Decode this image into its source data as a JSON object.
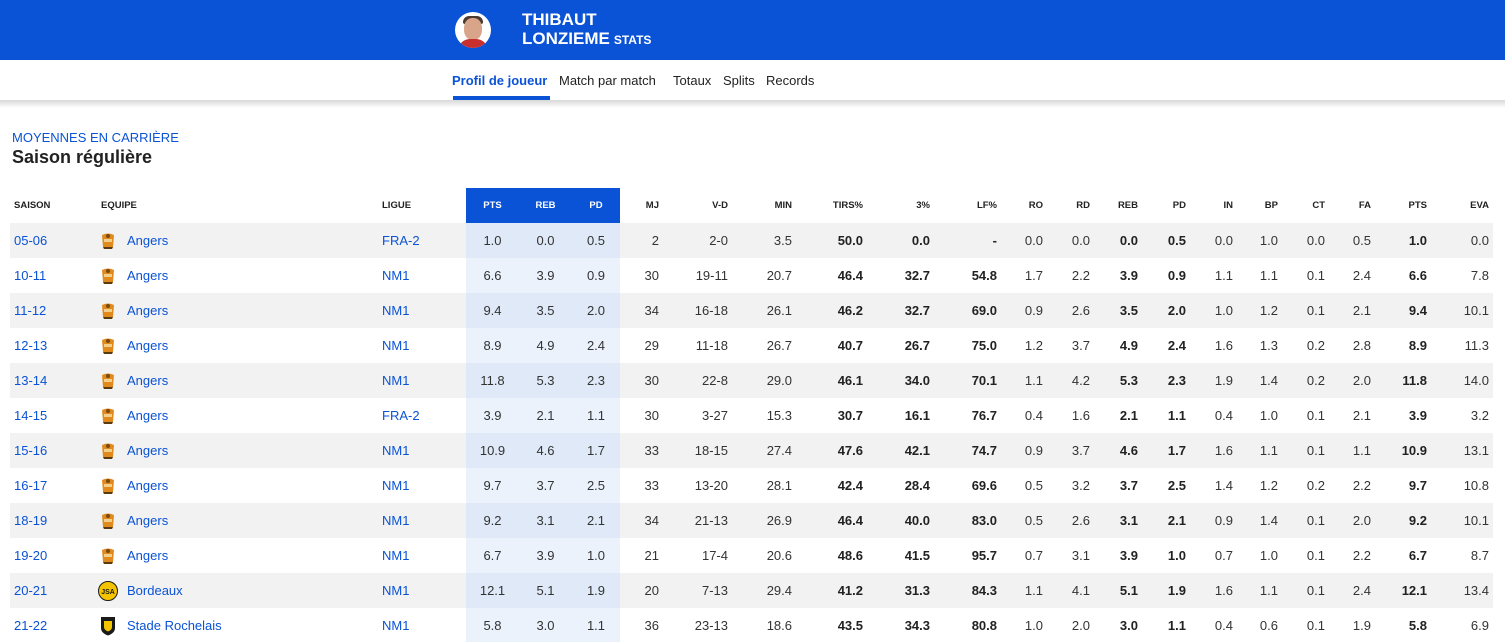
{
  "header": {
    "first_name": "THIBAUT",
    "last_name": "LONZIEME",
    "stats_label": "STATS",
    "avatar_icon": "player-photo"
  },
  "tabs": [
    {
      "label": "Profil de joueur",
      "active": true
    },
    {
      "label": "Match par match",
      "active": false
    },
    {
      "label": "Totaux",
      "active": false
    },
    {
      "label": "Splits",
      "active": false
    },
    {
      "label": "Records",
      "active": false
    }
  ],
  "section": {
    "kicker": "MOYENNES EN CARRIÈRE",
    "title": "Saison régulière"
  },
  "colors": {
    "brand_blue": "#0a52d6",
    "highlight_col_bg": "#ebf2fc"
  },
  "table": {
    "headers": [
      "SAISON",
      "EQUIPE",
      "LIGUE",
      "PTS",
      "REB",
      "PD",
      "MJ",
      "V-D",
      "MIN",
      "TIRS%",
      "3%",
      "LF%",
      "RO",
      "RD",
      "REB",
      "PD",
      "IN",
      "BP",
      "CT",
      "FA",
      "PTS",
      "EVA"
    ],
    "rows": [
      {
        "saison": "05-06",
        "team": "Angers",
        "logo": "angers-logo-icon",
        "league": "FRA-2",
        "stats": [
          "1.0",
          "0.0",
          "0.5",
          "2",
          "2-0",
          "3.5",
          "50.0",
          "0.0",
          "-",
          "0.0",
          "0.0",
          "0.0",
          "0.5",
          "0.0",
          "1.0",
          "0.0",
          "0.5",
          "1.0",
          "0.0"
        ]
      },
      {
        "saison": "10-11",
        "team": "Angers",
        "logo": "angers-logo-icon",
        "league": "NM1",
        "stats": [
          "6.6",
          "3.9",
          "0.9",
          "30",
          "19-11",
          "20.7",
          "46.4",
          "32.7",
          "54.8",
          "1.7",
          "2.2",
          "3.9",
          "0.9",
          "1.1",
          "1.1",
          "0.1",
          "2.4",
          "6.6",
          "7.8"
        ]
      },
      {
        "saison": "11-12",
        "team": "Angers",
        "logo": "angers-logo-icon",
        "league": "NM1",
        "stats": [
          "9.4",
          "3.5",
          "2.0",
          "34",
          "16-18",
          "26.1",
          "46.2",
          "32.7",
          "69.0",
          "0.9",
          "2.6",
          "3.5",
          "2.0",
          "1.0",
          "1.2",
          "0.1",
          "2.1",
          "9.4",
          "10.1"
        ]
      },
      {
        "saison": "12-13",
        "team": "Angers",
        "logo": "angers-logo-icon",
        "league": "NM1",
        "stats": [
          "8.9",
          "4.9",
          "2.4",
          "29",
          "11-18",
          "26.7",
          "40.7",
          "26.7",
          "75.0",
          "1.2",
          "3.7",
          "4.9",
          "2.4",
          "1.6",
          "1.3",
          "0.2",
          "2.8",
          "8.9",
          "11.3"
        ]
      },
      {
        "saison": "13-14",
        "team": "Angers",
        "logo": "angers-logo-icon",
        "league": "NM1",
        "stats": [
          "11.8",
          "5.3",
          "2.3",
          "30",
          "22-8",
          "29.0",
          "46.1",
          "34.0",
          "70.1",
          "1.1",
          "4.2",
          "5.3",
          "2.3",
          "1.9",
          "1.4",
          "0.2",
          "2.0",
          "11.8",
          "14.0"
        ]
      },
      {
        "saison": "14-15",
        "team": "Angers",
        "logo": "angers-logo-icon",
        "league": "FRA-2",
        "stats": [
          "3.9",
          "2.1",
          "1.1",
          "30",
          "3-27",
          "15.3",
          "30.7",
          "16.1",
          "76.7",
          "0.4",
          "1.6",
          "2.1",
          "1.1",
          "0.4",
          "1.0",
          "0.1",
          "2.1",
          "3.9",
          "3.2"
        ]
      },
      {
        "saison": "15-16",
        "team": "Angers",
        "logo": "angers-logo-icon",
        "league": "NM1",
        "stats": [
          "10.9",
          "4.6",
          "1.7",
          "33",
          "18-15",
          "27.4",
          "47.6",
          "42.1",
          "74.7",
          "0.9",
          "3.7",
          "4.6",
          "1.7",
          "1.6",
          "1.1",
          "0.1",
          "1.1",
          "10.9",
          "13.1"
        ]
      },
      {
        "saison": "16-17",
        "team": "Angers",
        "logo": "angers-logo-icon",
        "league": "NM1",
        "stats": [
          "9.7",
          "3.7",
          "2.5",
          "33",
          "13-20",
          "28.1",
          "42.4",
          "28.4",
          "69.6",
          "0.5",
          "3.2",
          "3.7",
          "2.5",
          "1.4",
          "1.2",
          "0.2",
          "2.2",
          "9.7",
          "10.8"
        ]
      },
      {
        "saison": "18-19",
        "team": "Angers",
        "logo": "angers-logo-icon",
        "league": "NM1",
        "stats": [
          "9.2",
          "3.1",
          "2.1",
          "34",
          "21-13",
          "26.9",
          "46.4",
          "40.0",
          "83.0",
          "0.5",
          "2.6",
          "3.1",
          "2.1",
          "0.9",
          "1.4",
          "0.1",
          "2.0",
          "9.2",
          "10.1"
        ]
      },
      {
        "saison": "19-20",
        "team": "Angers",
        "logo": "angers-logo-icon",
        "league": "NM1",
        "stats": [
          "6.7",
          "3.9",
          "1.0",
          "21",
          "17-4",
          "20.6",
          "48.6",
          "41.5",
          "95.7",
          "0.7",
          "3.1",
          "3.9",
          "1.0",
          "0.7",
          "1.0",
          "0.1",
          "2.2",
          "6.7",
          "8.7"
        ]
      },
      {
        "saison": "20-21",
        "team": "Bordeaux",
        "logo": "bordeaux-logo-icon",
        "league": "NM1",
        "stats": [
          "12.1",
          "5.1",
          "1.9",
          "20",
          "7-13",
          "29.4",
          "41.2",
          "31.3",
          "84.3",
          "1.1",
          "4.1",
          "5.1",
          "1.9",
          "1.6",
          "1.1",
          "0.1",
          "2.4",
          "12.1",
          "13.4"
        ]
      },
      {
        "saison": "21-22",
        "team": "Stade Rochelais",
        "logo": "rochelais-logo-icon",
        "league": "NM1",
        "stats": [
          "5.8",
          "3.0",
          "1.1",
          "36",
          "23-13",
          "18.6",
          "43.5",
          "34.3",
          "80.8",
          "1.0",
          "2.0",
          "3.0",
          "1.1",
          "0.4",
          "0.6",
          "0.1",
          "1.9",
          "5.8",
          "6.9"
        ]
      }
    ]
  }
}
